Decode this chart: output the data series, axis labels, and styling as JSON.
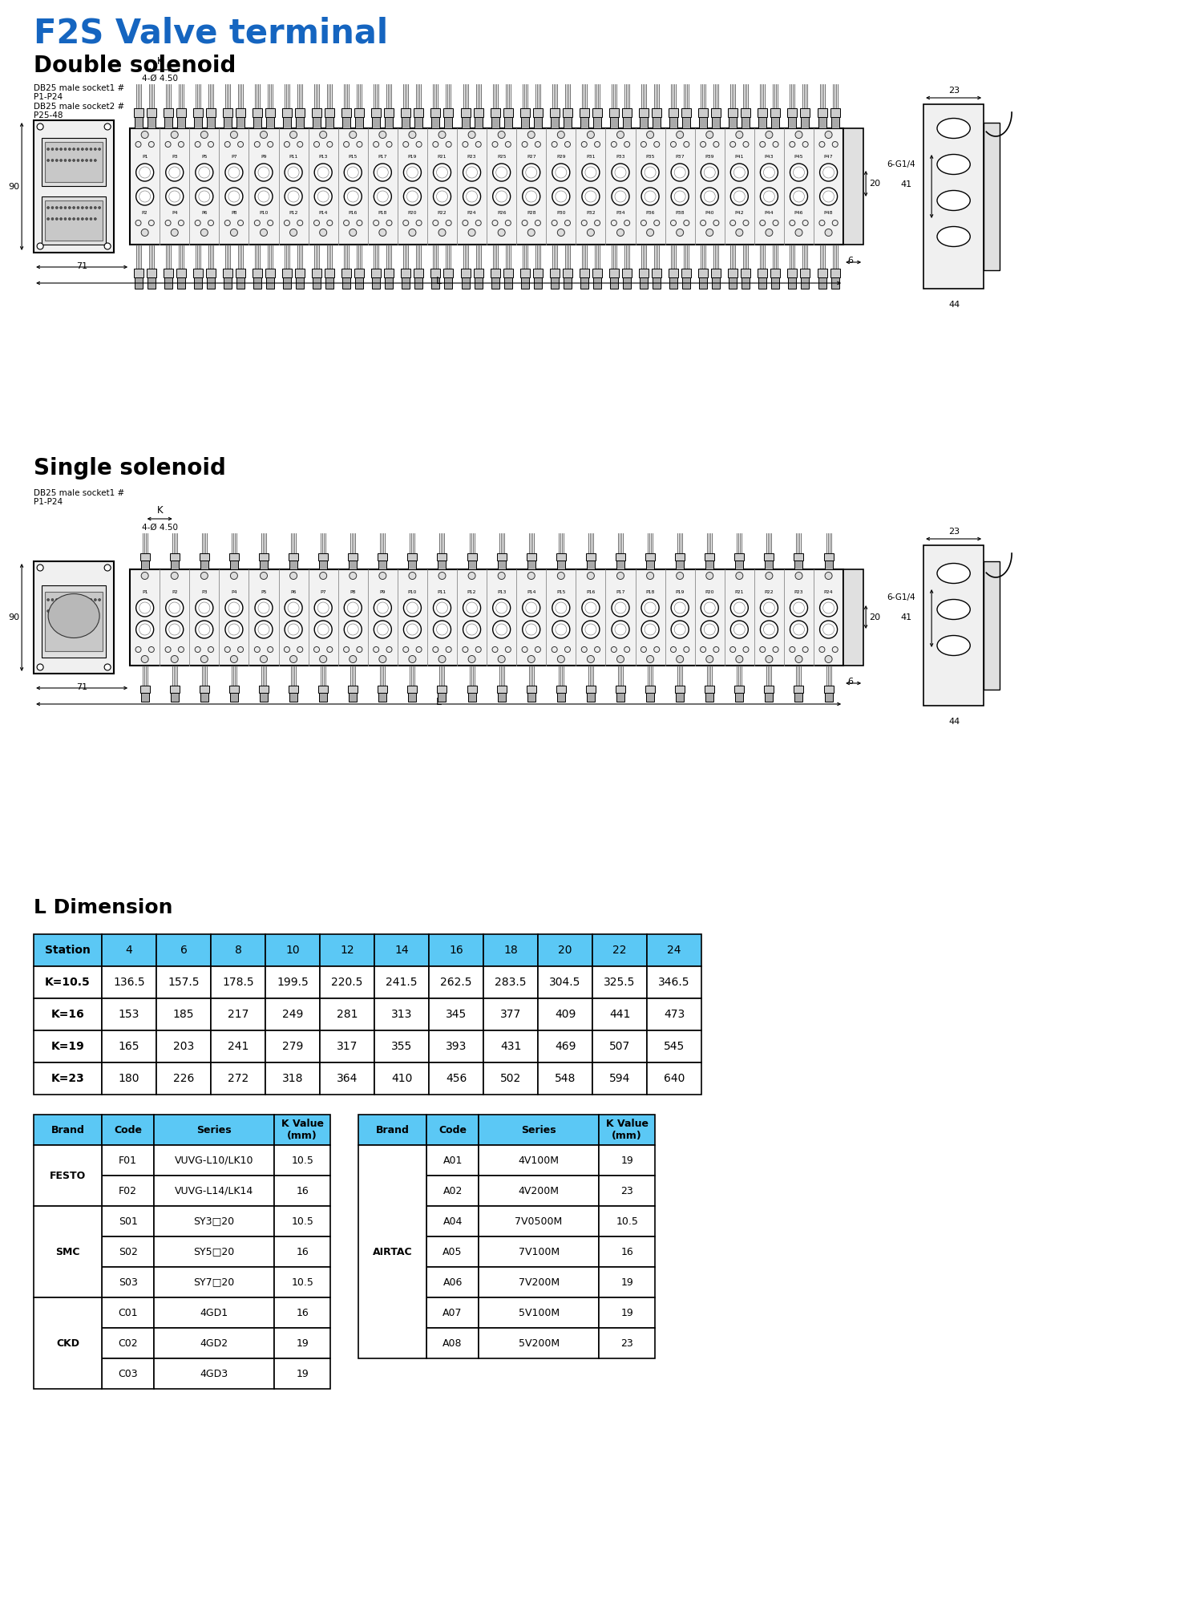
{
  "title": "F2S Valve terminal",
  "title_color": "#1565C0",
  "section1": "Double solenoid",
  "section2": "Single solenoid",
  "section3": "L Dimension",
  "ds_label1": "DB25 male socket1 #",
  "ds_label2": "P1-P24",
  "ds_label3": "DB25 male socket2 #",
  "ds_label4": "P25-48",
  "ss_label1": "DB25 male socket1 #",
  "ss_label2": "P1-P24",
  "dim_label": "4-Ø 4.50",
  "k_label": "K",
  "l_label": "L",
  "dim_90": "90",
  "dim_20": "20",
  "dim_41": "41",
  "dim_6": "6",
  "dim_71": "71",
  "dim_23": "23",
  "dim_44": "44",
  "dim_6g14": "6-G1/4",
  "dim_table_header": [
    "Station",
    "4",
    "6",
    "8",
    "10",
    "12",
    "14",
    "16",
    "18",
    "20",
    "22",
    "24"
  ],
  "dim_table_rows": [
    [
      "K=10.5",
      "136.5",
      "157.5",
      "178.5",
      "199.5",
      "220.5",
      "241.5",
      "262.5",
      "283.5",
      "304.5",
      "325.5",
      "346.5"
    ],
    [
      "K=16",
      "153",
      "185",
      "217",
      "249",
      "281",
      "313",
      "345",
      "377",
      "409",
      "441",
      "473"
    ],
    [
      "K=19",
      "165",
      "203",
      "241",
      "279",
      "317",
      "355",
      "393",
      "431",
      "469",
      "507",
      "545"
    ],
    [
      "K=23",
      "180",
      "226",
      "272",
      "318",
      "364",
      "410",
      "456",
      "502",
      "548",
      "594",
      "640"
    ]
  ],
  "brand_table_left": [
    [
      "FESTO",
      "F01",
      "VUVG-L10/LK10",
      "10.5"
    ],
    [
      "",
      "F02",
      "VUVG-L14/LK14",
      "16"
    ],
    [
      "SMC",
      "S01",
      "SY3□20",
      "10.5"
    ],
    [
      "",
      "S02",
      "SY5□20",
      "16"
    ],
    [
      "",
      "S03",
      "SY7□20",
      "10.5"
    ],
    [
      "CKD",
      "C01",
      "4GD1",
      "16"
    ],
    [
      "",
      "C02",
      "4GD2",
      "19"
    ],
    [
      "",
      "C03",
      "4GD3",
      "19"
    ]
  ],
  "brand_table_right": [
    [
      "AIRTAC",
      "A01",
      "4V100M",
      "19"
    ],
    [
      "",
      "A02",
      "4V200M",
      "23"
    ],
    [
      "",
      "A04",
      "7V0500M",
      "10.5"
    ],
    [
      "",
      "A05",
      "7V100M",
      "16"
    ],
    [
      "",
      "A06",
      "7V200M",
      "19"
    ],
    [
      "",
      "A07",
      "5V100M",
      "19"
    ],
    [
      "",
      "A08",
      "5V200M",
      "23"
    ]
  ],
  "header_bg": "#5BC8F5",
  "ds_pin_labels": [
    "P1",
    "P3",
    "P5",
    "P7",
    "P9",
    "P11",
    "P13",
    "P15",
    "P17",
    "P19",
    "P21",
    "P23",
    "P25",
    "P27",
    "P29",
    "P31",
    "P33",
    "P35",
    "P37",
    "P39",
    "P41",
    "P43",
    "P45",
    "P47"
  ],
  "ds_pin_labels2": [
    "P2",
    "P4",
    "P6",
    "P8",
    "P10",
    "P12",
    "P14",
    "P16",
    "P18",
    "P20",
    "P22",
    "P24",
    "P26",
    "P28",
    "P30",
    "P32",
    "P34",
    "P36",
    "P38",
    "P40",
    "P42",
    "P44",
    "P46",
    "P48"
  ],
  "ss_pin_labels": [
    "P1",
    "P2",
    "P3",
    "P4",
    "P5",
    "P6",
    "P7",
    "P8",
    "P9",
    "P10",
    "P11",
    "P12",
    "P13",
    "P14",
    "P15",
    "P16",
    "P17",
    "P18",
    "P19",
    "P20",
    "P21",
    "P22",
    "P23",
    "P24"
  ]
}
